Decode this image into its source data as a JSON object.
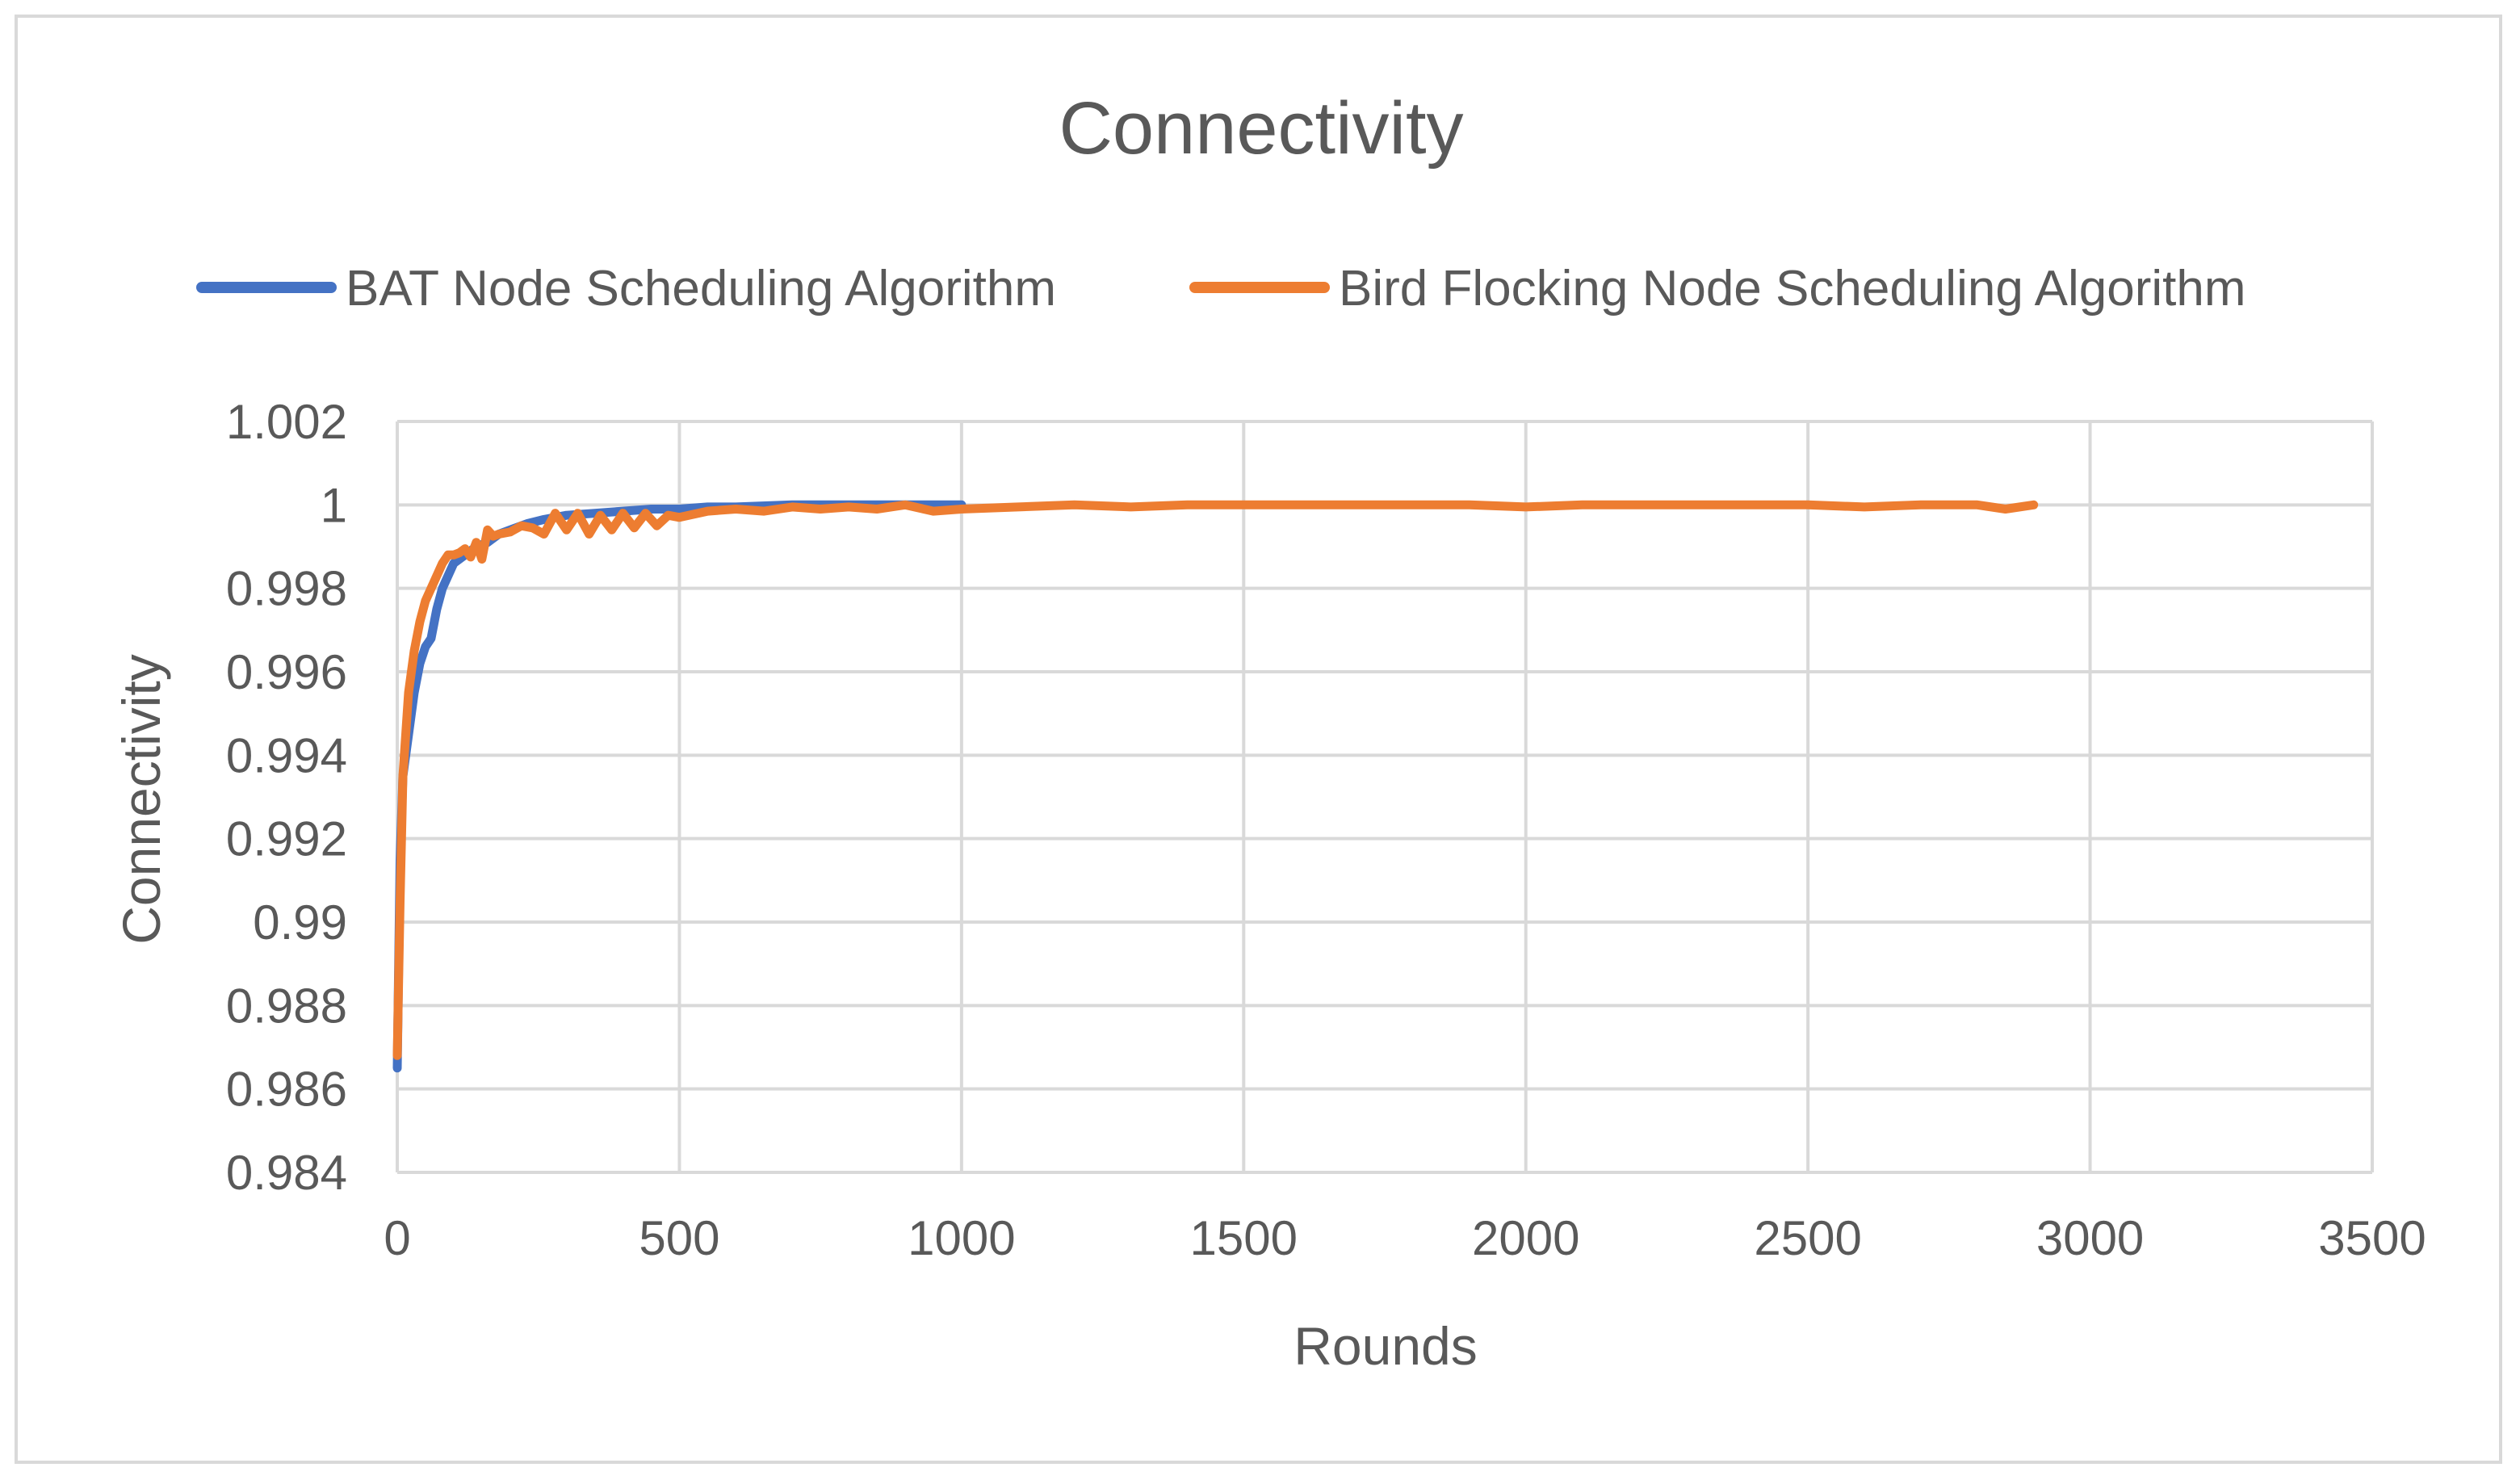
{
  "chart_data": {
    "type": "line",
    "title": "Connectivity",
    "xlabel": "Rounds",
    "ylabel": "Connectivity",
    "xlim": [
      0,
      3500
    ],
    "ylim": [
      0.984,
      1.002
    ],
    "x_ticks": [
      0,
      500,
      1000,
      1500,
      2000,
      2500,
      3000,
      3500
    ],
    "x_tick_labels": [
      "0",
      "500",
      "1000",
      "1500",
      "2000",
      "2500",
      "3000",
      "3500"
    ],
    "y_ticks": [
      0.984,
      0.986,
      0.988,
      0.99,
      0.992,
      0.994,
      0.996,
      0.998,
      1,
      1.002
    ],
    "y_tick_labels": [
      "0.984",
      "0.986",
      "0.988",
      "0.99",
      "0.992",
      "0.994",
      "0.996",
      "0.998",
      "1",
      "1.002"
    ],
    "grid": true,
    "legend_position": "top",
    "series": [
      {
        "name": "BAT Node Scheduling Algorithm",
        "color": "#4472C4",
        "x": [
          0,
          5,
          10,
          20,
          30,
          40,
          50,
          60,
          70,
          80,
          90,
          100,
          120,
          140,
          160,
          180,
          200,
          230,
          260,
          300,
          350,
          400,
          450,
          500,
          550,
          600,
          700,
          800,
          900,
          1000
        ],
        "y": [
          0.9865,
          0.9915,
          0.9935,
          0.9945,
          0.9955,
          0.9962,
          0.9966,
          0.9968,
          0.9975,
          0.998,
          0.9983,
          0.9986,
          0.9988,
          0.999,
          0.9991,
          0.9993,
          0.9994,
          0.99955,
          0.99965,
          0.99975,
          0.9998,
          0.99985,
          0.9999,
          0.9999,
          0.99995,
          0.99995,
          1.0,
          1.0,
          1.0,
          1.0
        ]
      },
      {
        "name": "Bird Flocking Node Scheduling Algorithm",
        "color": "#ED7D31",
        "x": [
          0,
          5,
          10,
          20,
          30,
          40,
          50,
          60,
          70,
          80,
          90,
          100,
          110,
          120,
          130,
          140,
          150,
          160,
          170,
          180,
          200,
          220,
          240,
          260,
          280,
          300,
          320,
          340,
          360,
          380,
          400,
          420,
          440,
          460,
          480,
          500,
          550,
          600,
          650,
          700,
          750,
          800,
          850,
          900,
          950,
          1000,
          1100,
          1200,
          1300,
          1400,
          1500,
          1600,
          1700,
          1800,
          1900,
          2000,
          2100,
          2200,
          2300,
          2400,
          2500,
          2600,
          2700,
          2800,
          2850,
          2900
        ],
        "y": [
          0.9868,
          0.9905,
          0.9935,
          0.9955,
          0.9965,
          0.9972,
          0.9977,
          0.998,
          0.9983,
          0.9986,
          0.9988,
          0.9988,
          0.99885,
          0.99895,
          0.99875,
          0.9991,
          0.9987,
          0.9994,
          0.99925,
          0.9993,
          0.99935,
          0.9995,
          0.99945,
          0.9993,
          0.9998,
          0.9994,
          0.9998,
          0.9993,
          0.99975,
          0.9994,
          0.9998,
          0.99945,
          0.9998,
          0.9995,
          0.99975,
          0.9997,
          0.99985,
          0.9999,
          0.99985,
          0.99995,
          0.9999,
          0.99995,
          0.9999,
          1.0,
          0.99985,
          0.9999,
          0.99995,
          1.0,
          0.99995,
          1.0,
          1.0,
          1.0,
          1.0,
          1.0,
          1.0,
          0.99995,
          1.0,
          1.0,
          1.0,
          1.0,
          1.0,
          0.99995,
          1.0,
          1.0,
          0.9999,
          1.0
        ]
      }
    ]
  }
}
